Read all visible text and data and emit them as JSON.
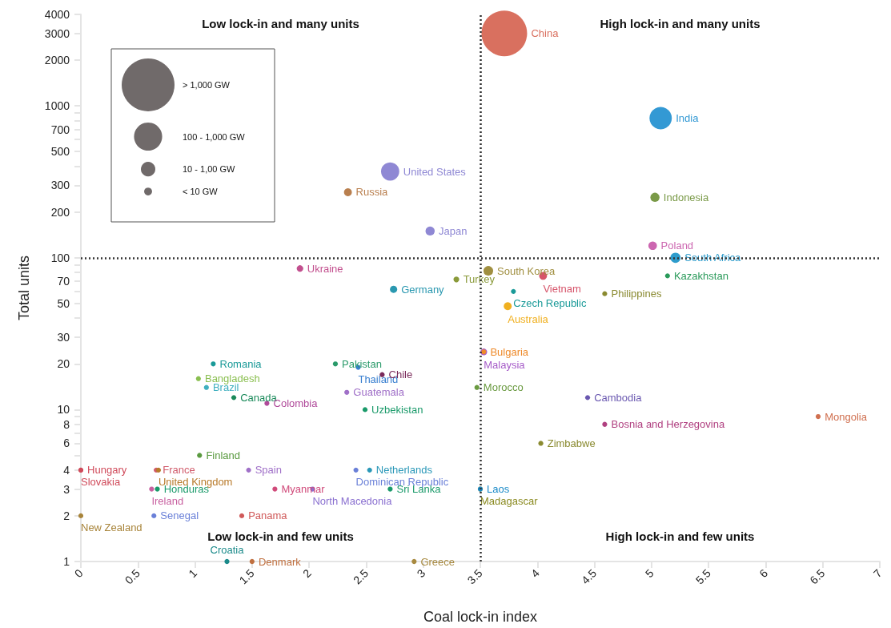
{
  "chart_data": {
    "type": "bubble",
    "xlabel": "Coal lock-in index",
    "ylabel": "Total units",
    "log": "y",
    "grid": false,
    "legend": false,
    "marker": "circle",
    "xlim": [
      0,
      7
    ],
    "xticks": [
      0,
      0.5,
      1,
      1.5,
      2,
      2.5,
      3,
      3.5,
      4,
      4.5,
      5,
      5.5,
      6,
      6.5,
      7
    ],
    "ylim": [
      1,
      4000
    ],
    "yticks": [
      1,
      2,
      3,
      4,
      {
        "value": 5,
        "label": null
      },
      6,
      {
        "value": 7,
        "label": null
      },
      8,
      {
        "value": 9,
        "label": null
      },
      10,
      20,
      30,
      {
        "value": 40,
        "label": null
      },
      50,
      {
        "value": 60,
        "label": null
      },
      70,
      {
        "value": 80,
        "label": null
      },
      {
        "value": 90,
        "label": null
      },
      100,
      200,
      300,
      {
        "value": 400,
        "label": null
      },
      500,
      {
        "value": 600,
        "label": null
      },
      700,
      {
        "value": 800,
        "label": null
      },
      {
        "value": 900,
        "label": null
      },
      1000,
      2000,
      3000,
      4000
    ],
    "size_legend": [
      {
        "value": 1.34,
        "label": "> 1,000 GW"
      },
      {
        "value": 0.38,
        "label": "100 - 1,000 GW"
      },
      {
        "value": 0.1,
        "label": "10 - 1,00 GW"
      },
      {
        "value": 0.03,
        "label": "< 10 GW"
      }
    ],
    "ref_lines": [
      {
        "axis": "x",
        "value": 3.5,
        "line_style": "dotted",
        "color": "#333333"
      },
      {
        "axis": "y",
        "value": 100,
        "line_style": "dotted",
        "color": "#333333"
      }
    ],
    "annotations": [
      "Low lock-in and many units",
      "High lock-in and many units",
      "Low lock-in and few units",
      "High lock-in and few units"
    ],
    "series": [
      {
        "name": "China",
        "color": "#d9705f",
        "x": [
          3.71
        ],
        "values": [
          3000
        ],
        "sizes": [
          1
        ]
      },
      {
        "name": "India",
        "color": "#3399d4",
        "x": [
          5.08
        ],
        "values": [
          830
        ],
        "sizes": [
          0.24
        ]
      },
      {
        "name": "United States",
        "color": "#8f88d4",
        "x": [
          2.71
        ],
        "values": [
          370
        ],
        "sizes": [
          0.16
        ]
      },
      {
        "name": "Russia",
        "color": "#b97f4e",
        "x": [
          2.34
        ],
        "values": [
          270
        ],
        "sizes": [
          0.03
        ]
      },
      {
        "name": "Japan",
        "color": "#8f88d4",
        "x": [
          3.06
        ],
        "values": [
          150
        ],
        "sizes": [
          0.04
        ]
      },
      {
        "name": "Indonesia",
        "color": "#7a9a48",
        "x": [
          5.03
        ],
        "values": [
          250
        ],
        "sizes": [
          0.04
        ]
      },
      {
        "name": "Poland",
        "color": "#cc66b0",
        "x": [
          5.01
        ],
        "values": [
          120
        ],
        "sizes": [
          0.035
        ]
      },
      {
        "name": "South Africa",
        "color": "#2e9ccc",
        "x": [
          5.21
        ],
        "values": [
          100
        ],
        "sizes": [
          0.05
        ]
      },
      {
        "name": "Kazakhstan",
        "color": "#2a9a5a",
        "x": [
          5.14
        ],
        "values": [
          76
        ],
        "sizes": [
          0.012
        ]
      },
      {
        "name": "South Korea",
        "color": "#a08f40",
        "x": [
          3.57
        ],
        "values": [
          82
        ],
        "sizes": [
          0.045
        ]
      },
      {
        "name": "Vietnam",
        "color": "#d6546a",
        "x": [
          4.05
        ],
        "values": [
          76
        ],
        "sizes": [
          0.03
        ]
      },
      {
        "name": "Turkey",
        "color": "#8a9a3a",
        "x": [
          3.29
        ],
        "values": [
          72
        ],
        "sizes": [
          0.016
        ]
      },
      {
        "name": "Germany",
        "color": "#2a98b0",
        "x": [
          2.74
        ],
        "values": [
          62
        ],
        "sizes": [
          0.025
        ]
      },
      {
        "name": "Ukraine",
        "color": "#c24f8e",
        "x": [
          1.92
        ],
        "values": [
          85
        ],
        "sizes": [
          0.02
        ]
      },
      {
        "name": "Czech Republic",
        "color": "#1a9a98",
        "x": [
          3.79
        ],
        "values": [
          60
        ],
        "sizes": [
          0.012
        ]
      },
      {
        "name": "Philippines",
        "color": "#8a8a30",
        "x": [
          4.59
        ],
        "values": [
          58
        ],
        "sizes": [
          0.012
        ]
      },
      {
        "name": "Australia",
        "color": "#f0b020",
        "x": [
          3.74
        ],
        "values": [
          48
        ],
        "sizes": [
          0.03
        ]
      },
      {
        "name": "Bulgaria",
        "color": "#ee8a2a",
        "x": [
          3.53
        ],
        "values": [
          24
        ],
        "sizes": [
          0.012
        ]
      },
      {
        "name": "Malaysia",
        "color": "#a65cc8",
        "x": [
          3.53
        ],
        "values": [
          24
        ],
        "sizes": [
          0.022
        ]
      },
      {
        "name": "Morocco",
        "color": "#6a9a40",
        "x": [
          3.47
        ],
        "values": [
          14
        ],
        "sizes": [
          0.012
        ]
      },
      {
        "name": "Cambodia",
        "color": "#6a58b0",
        "x": [
          4.44
        ],
        "values": [
          12
        ],
        "sizes": [
          0.012
        ]
      },
      {
        "name": "Bosnia and Herzegovina",
        "color": "#b04080",
        "x": [
          4.59
        ],
        "values": [
          8
        ],
        "sizes": [
          0.012
        ]
      },
      {
        "name": "Mongolia",
        "color": "#d07050",
        "x": [
          6.46
        ],
        "values": [
          9
        ],
        "sizes": [
          0.012
        ]
      },
      {
        "name": "Zimbabwe",
        "color": "#8a8a30",
        "x": [
          4.03
        ],
        "values": [
          6
        ],
        "sizes": [
          0.012
        ]
      },
      {
        "name": "Laos",
        "color": "#1a8ac8",
        "x": [
          3.5
        ],
        "values": [
          3
        ],
        "sizes": [
          0.012
        ]
      },
      {
        "name": "Madagascar",
        "color": "#8a8a20",
        "x": [
          3.5
        ],
        "values": [
          3
        ],
        "sizes": [
          0.012
        ]
      },
      {
        "name": "Pakistan",
        "color": "#2a9a6a",
        "x": [
          2.23
        ],
        "values": [
          20
        ],
        "sizes": [
          0.012
        ]
      },
      {
        "name": "Thailand",
        "color": "#3a80d0",
        "x": [
          2.43
        ],
        "values": [
          19
        ],
        "sizes": [
          0.012
        ]
      },
      {
        "name": "Chile",
        "color": "#7a2a5a",
        "x": [
          2.64
        ],
        "values": [
          17
        ],
        "sizes": [
          0.012
        ]
      },
      {
        "name": "Guatemala",
        "color": "#a070c8",
        "x": [
          2.33
        ],
        "values": [
          13
        ],
        "sizes": [
          0.012
        ]
      },
      {
        "name": "Uzbekistan",
        "color": "#1a9a6a",
        "x": [
          2.49
        ],
        "values": [
          10
        ],
        "sizes": [
          0.012
        ]
      },
      {
        "name": "Netherlands",
        "color": "#2a98b8",
        "x": [
          2.53
        ],
        "values": [
          4
        ],
        "sizes": [
          0.012
        ]
      },
      {
        "name": "Dominican Republic",
        "color": "#6a80d8",
        "x": [
          2.41
        ],
        "values": [
          4
        ],
        "sizes": [
          0.012
        ]
      },
      {
        "name": "Sri Lanka",
        "color": "#1a9a6a",
        "x": [
          2.71
        ],
        "values": [
          3
        ],
        "sizes": [
          0.012
        ]
      },
      {
        "name": "North Macedonia",
        "color": "#8a70d0",
        "x": [
          2.03
        ],
        "values": [
          3
        ],
        "sizes": [
          0.012
        ]
      },
      {
        "name": "Myanmar",
        "color": "#d04a7a",
        "x": [
          1.7
        ],
        "values": [
          3
        ],
        "sizes": [
          0.012
        ]
      },
      {
        "name": "Greece",
        "color": "#a88a40",
        "x": [
          2.92
        ],
        "values": [
          1
        ],
        "sizes": [
          0.012
        ]
      },
      {
        "name": "Romania",
        "color": "#1a9a98",
        "x": [
          1.16
        ],
        "values": [
          20
        ],
        "sizes": [
          0.012
        ]
      },
      {
        "name": "Bangladesh",
        "color": "#8abf50",
        "x": [
          1.03
        ],
        "values": [
          16
        ],
        "sizes": [
          0.012
        ]
      },
      {
        "name": "Brazil",
        "color": "#40b0c0",
        "x": [
          1.1
        ],
        "values": [
          14
        ],
        "sizes": [
          0.012
        ]
      },
      {
        "name": "Canada",
        "color": "#1a8a5a",
        "x": [
          1.34
        ],
        "values": [
          12
        ],
        "sizes": [
          0.012
        ]
      },
      {
        "name": "Colombia",
        "color": "#b04a9a",
        "x": [
          1.63
        ],
        "values": [
          11
        ],
        "sizes": [
          0.012
        ]
      },
      {
        "name": "Finland",
        "color": "#5a9a40",
        "x": [
          1.04
        ],
        "values": [
          5
        ],
        "sizes": [
          0.012
        ]
      },
      {
        "name": "Hungary",
        "color": "#d04a5a",
        "x": [
          0
        ],
        "values": [
          4
        ],
        "sizes": [
          0.012
        ]
      },
      {
        "name": "Slovakia",
        "color": "#d04a5a",
        "x": [
          0
        ],
        "values": [
          4
        ],
        "sizes": [
          0.012
        ]
      },
      {
        "name": "France",
        "color": "#d05a6a",
        "x": [
          0.66
        ],
        "values": [
          4
        ],
        "sizes": [
          0.012
        ]
      },
      {
        "name": "United Kingdom",
        "color": "#b87a2a",
        "x": [
          0.68
        ],
        "values": [
          4
        ],
        "sizes": [
          0.012
        ]
      },
      {
        "name": "Ireland",
        "color": "#c860a0",
        "x": [
          0.62
        ],
        "values": [
          3
        ],
        "sizes": [
          0.012
        ]
      },
      {
        "name": "Honduras",
        "color": "#1a9a6a",
        "x": [
          0.67
        ],
        "values": [
          3
        ],
        "sizes": [
          0.012
        ]
      },
      {
        "name": "Senegal",
        "color": "#6a80d8",
        "x": [
          0.64
        ],
        "values": [
          2
        ],
        "sizes": [
          0.012
        ]
      },
      {
        "name": "New Zealand",
        "color": "#a8843a",
        "x": [
          0
        ],
        "values": [
          2
        ],
        "sizes": [
          0.012
        ]
      },
      {
        "name": "Spain",
        "color": "#a070c8",
        "x": [
          1.47
        ],
        "values": [
          4
        ],
        "sizes": [
          0.012
        ]
      },
      {
        "name": "Panama",
        "color": "#d05a5a",
        "x": [
          1.41
        ],
        "values": [
          2
        ],
        "sizes": [
          0.012
        ]
      },
      {
        "name": "Croatia",
        "color": "#1a8a8a",
        "x": [
          1.28
        ],
        "values": [
          1
        ],
        "sizes": [
          0.012
        ]
      },
      {
        "name": "Denmark",
        "color": "#c07040",
        "x": [
          1.5
        ],
        "values": [
          1
        ],
        "sizes": [
          0.012
        ]
      }
    ]
  }
}
